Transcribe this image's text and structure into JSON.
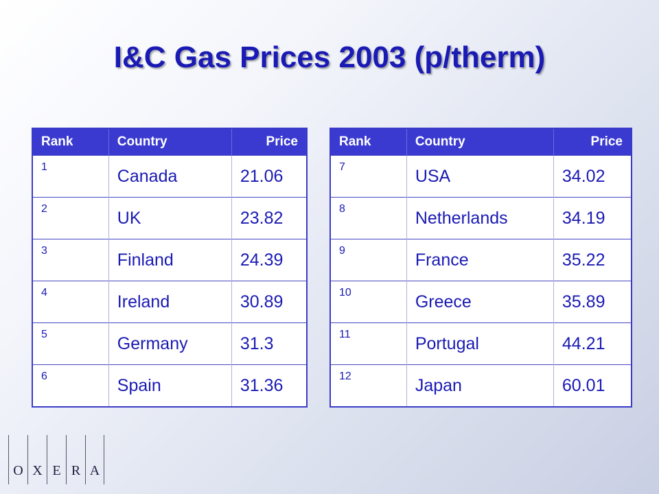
{
  "title": "I&C Gas Prices 2003 (p/therm)",
  "headers": {
    "rank": "Rank",
    "country": "Country",
    "price": "Price"
  },
  "tables": [
    {
      "rows": [
        {
          "rank": "1",
          "country": "Canada",
          "price": "21.06"
        },
        {
          "rank": "2",
          "country": "UK",
          "price": "23.82"
        },
        {
          "rank": "3",
          "country": "Finland",
          "price": "24.39"
        },
        {
          "rank": "4",
          "country": "Ireland",
          "price": "30.89"
        },
        {
          "rank": "5",
          "country": "Germany",
          "price": "31.3"
        },
        {
          "rank": "6",
          "country": "Spain",
          "price": "31.36"
        }
      ]
    },
    {
      "rows": [
        {
          "rank": "7",
          "country": "USA",
          "price": "34.02"
        },
        {
          "rank": "8",
          "country": "Netherlands",
          "price": "34.19"
        },
        {
          "rank": "9",
          "country": "France",
          "price": "35.22"
        },
        {
          "rank": "10",
          "country": "Greece",
          "price": "35.89"
        },
        {
          "rank": "11",
          "country": "Portugal",
          "price": "44.21"
        },
        {
          "rank": "12",
          "country": "Japan",
          "price": "60.01"
        }
      ]
    }
  ],
  "logo": {
    "letters": [
      "O",
      "X",
      "E",
      "R",
      "A"
    ]
  },
  "colors": {
    "title": "#1a1ab4",
    "header_bg": "#3a3ad0",
    "cell_text": "#1a1ab4"
  }
}
